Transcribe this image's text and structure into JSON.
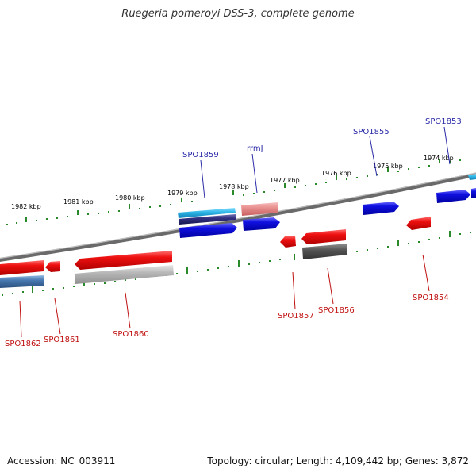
{
  "title": "Ruegeria pomeroyi DSS-3, complete genome",
  "footer": {
    "accession": "Accession: NC_003911",
    "summary": "Topology: circular; Length: 4,109,442 bp; Genes: 3,872"
  },
  "kbp_labels": [
    "1982 kbp",
    "1981 kbp",
    "1980 kbp",
    "1979 kbp",
    "1978 kbp",
    "1977 kbp",
    "1976 kbp",
    "1975 kbp",
    "1974 kbp"
  ],
  "genes_top": [
    "SPO1859",
    "rrmJ",
    "SPO1855",
    "SPO1853"
  ],
  "genes_bottom": [
    "SPO1862",
    "SPO1861",
    "SPO1860",
    "SPO1857",
    "SPO1856",
    "SPO1854"
  ],
  "colors": {
    "forward_blue": "#1010e0",
    "cyan": "#30b8e8",
    "reverse_red": "#e81010",
    "pink": "#e89090",
    "steel_blue": "#4878b0",
    "gray": "#b0b0b0",
    "dark_gray": "#555555",
    "tick_green": "#2a8a2a"
  }
}
